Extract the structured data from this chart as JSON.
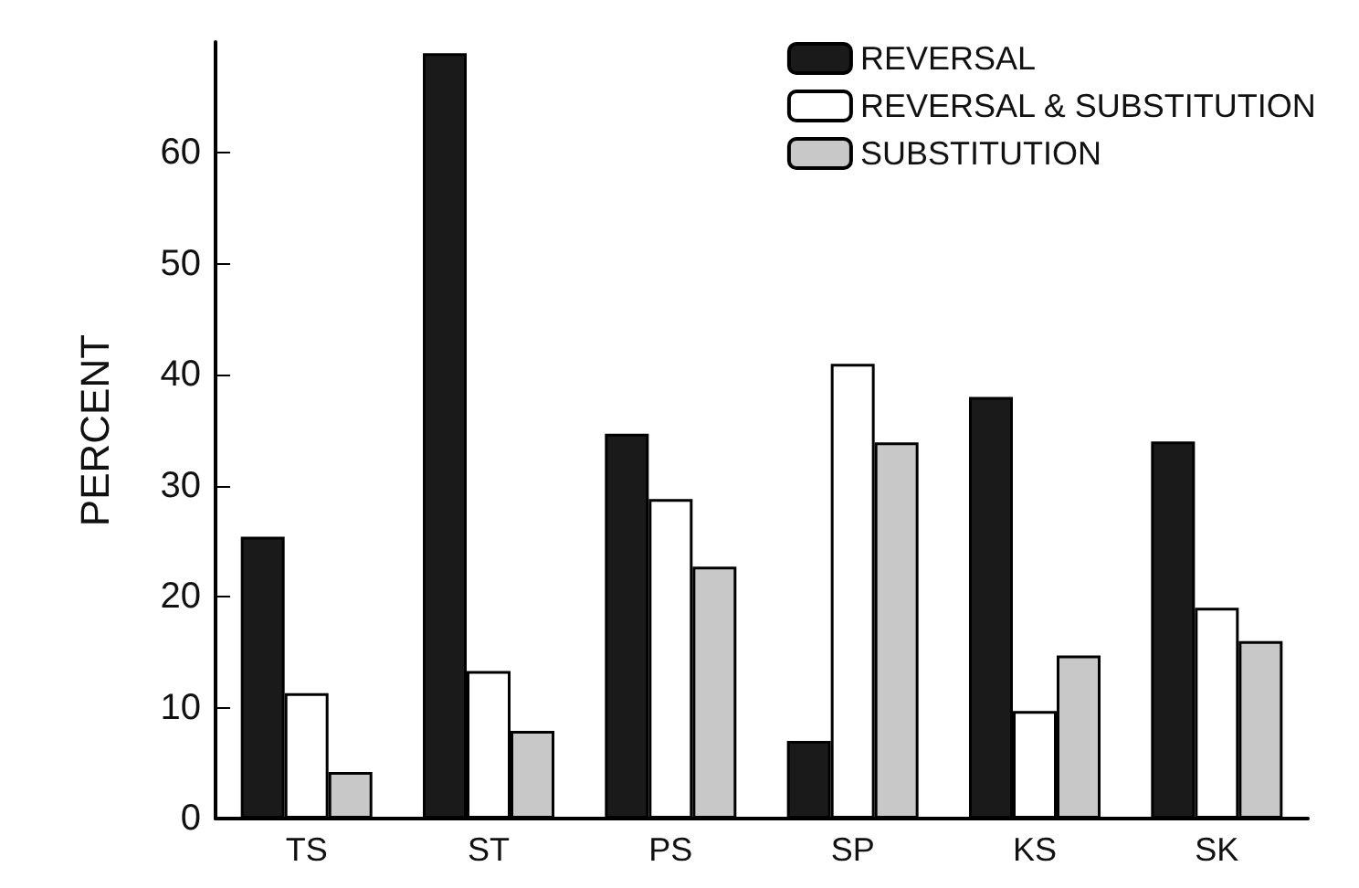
{
  "chart_data": {
    "type": "bar",
    "ylabel": "PERCENT",
    "categories": [
      "TS",
      "ST",
      "PS",
      "SP",
      "KS",
      "SK"
    ],
    "series": [
      {
        "name": "REVERSAL",
        "color": "#1a1a1a",
        "values": [
          25.4,
          69,
          34.7,
          7,
          38,
          34
        ]
      },
      {
        "name": "REVERSAL & SUBSTITUTION",
        "color": "#ffffff",
        "values": [
          11.3,
          13.3,
          28.8,
          41,
          9.7,
          19
        ]
      },
      {
        "name": "SUBSTITUTION",
        "color": "#c8c8c8",
        "values": [
          4.2,
          7.9,
          22.7,
          33.9,
          14.7,
          16
        ]
      }
    ],
    "ylim": [
      0,
      70
    ],
    "yticks": [
      0,
      10,
      20,
      30,
      40,
      50,
      60
    ],
    "grid": false,
    "legend": "top right"
  }
}
